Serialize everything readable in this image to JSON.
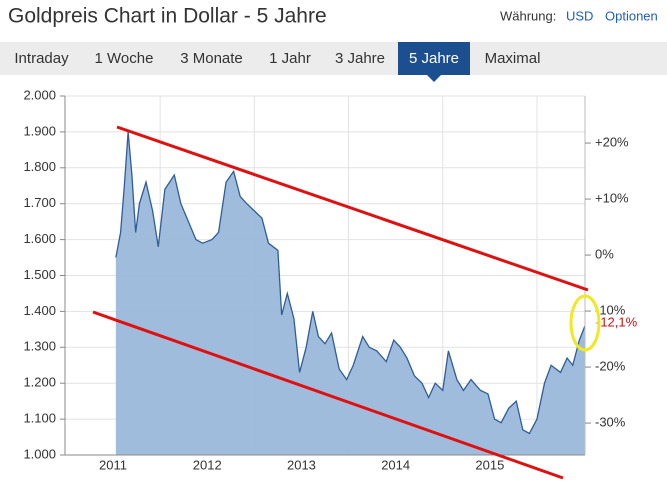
{
  "header": {
    "title": "Goldpreis Chart in Dollar - 5 Jahre",
    "currency_label": "Währung:",
    "currency": "USD",
    "options": "Optionen"
  },
  "tabs": [
    "Intraday",
    "1 Woche",
    "3 Monate",
    "1 Jahr",
    "3 Jahre",
    "5 Jahre",
    "Maximal"
  ],
  "active_tab": 5,
  "chart_data": {
    "type": "area",
    "x": [
      2011.53,
      2011.58,
      2011.62,
      2011.66,
      2011.7,
      2011.74,
      2011.78,
      2011.85,
      2011.92,
      2011.98,
      2012.05,
      2012.15,
      2012.22,
      2012.3,
      2012.38,
      2012.45,
      2012.55,
      2012.62,
      2012.7,
      2012.78,
      2012.85,
      2012.92,
      2013.0,
      2013.08,
      2013.15,
      2013.25,
      2013.29,
      2013.35,
      2013.42,
      2013.48,
      2013.55,
      2013.62,
      2013.68,
      2013.75,
      2013.82,
      2013.9,
      2013.98,
      2014.05,
      2014.15,
      2014.22,
      2014.3,
      2014.4,
      2014.48,
      2014.55,
      2014.62,
      2014.7,
      2014.78,
      2014.85,
      2014.92,
      2015.0,
      2015.06,
      2015.15,
      2015.22,
      2015.3,
      2015.4,
      2015.48,
      2015.55,
      2015.62,
      2015.7,
      2015.78,
      2015.85,
      2015.92,
      2016.0,
      2016.08,
      2016.15,
      2016.25,
      2016.32,
      2016.38,
      2016.45,
      2016.51
    ],
    "values": [
      1550,
      1620,
      1750,
      1900,
      1780,
      1620,
      1700,
      1760,
      1680,
      1580,
      1740,
      1780,
      1700,
      1650,
      1600,
      1590,
      1600,
      1620,
      1760,
      1790,
      1720,
      1700,
      1680,
      1660,
      1590,
      1570,
      1390,
      1450,
      1380,
      1230,
      1300,
      1400,
      1330,
      1310,
      1340,
      1240,
      1210,
      1250,
      1330,
      1300,
      1290,
      1260,
      1320,
      1300,
      1270,
      1220,
      1200,
      1160,
      1200,
      1180,
      1290,
      1210,
      1180,
      1210,
      1180,
      1170,
      1100,
      1090,
      1130,
      1150,
      1070,
      1060,
      1100,
      1200,
      1250,
      1230,
      1270,
      1250,
      1320,
      1360
    ],
    "color": "#9bb8da",
    "line_color": "#2d5d9b",
    "xlim": [
      2010.99,
      2016.51
    ],
    "xticks": [
      {
        "value": 2011.5,
        "label": "2011"
      },
      {
        "value": 2012.5,
        "label": "2012"
      },
      {
        "value": 2013.5,
        "label": "2013"
      },
      {
        "value": 2014.5,
        "label": "2014"
      },
      {
        "value": 2015.5,
        "label": "2015"
      }
    ],
    "xgrid": [
      2012,
      2013,
      2014,
      2015,
      2016
    ],
    "ylim": [
      1000,
      2000
    ],
    "yticks": [
      {
        "value": 1000,
        "label": "1.000"
      },
      {
        "value": 1100,
        "label": "1.100"
      },
      {
        "value": 1200,
        "label": "1.200"
      },
      {
        "value": 1300,
        "label": "1.300"
      },
      {
        "value": 1400,
        "label": "1.400"
      },
      {
        "value": 1500,
        "label": "1.500"
      },
      {
        "value": 1600,
        "label": "1.600"
      },
      {
        "value": 1700,
        "label": "1.700"
      },
      {
        "value": 1800,
        "label": "1.800"
      },
      {
        "value": 1900,
        "label": "1.900"
      },
      {
        "value": 2000,
        "label": "2.000"
      }
    ],
    "y2lim": [
      -35.7,
      28.4
    ],
    "y2ticks": [
      {
        "value": -30,
        "label": "-30%"
      },
      {
        "value": -20,
        "label": "-20%"
      },
      {
        "value": -10,
        "label": "-10%"
      },
      {
        "value": 0,
        "label": "0%"
      },
      {
        "value": 10,
        "label": "+10%"
      },
      {
        "value": 20,
        "label": "+20%"
      }
    ],
    "annotation": {
      "value": -12.1,
      "label": "-12,1%"
    },
    "grid": true
  }
}
